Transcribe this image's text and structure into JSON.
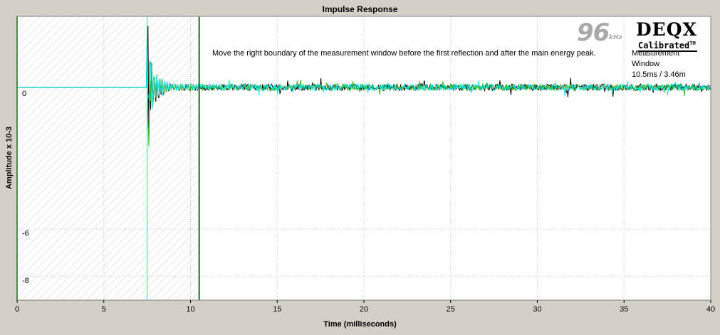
{
  "chart_data": {
    "type": "line",
    "title": "Impulse Response",
    "xlabel": "Time (milliseconds)",
    "ylabel": "Amplitude x 10-3",
    "xlim": [
      0,
      40
    ],
    "ylim": [
      -9,
      3
    ],
    "x_ticks": [
      "0",
      "5",
      "10",
      "15",
      "20",
      "25",
      "30",
      "35",
      "40"
    ],
    "y_ticks": [
      {
        "value": 0,
        "label": "0"
      },
      {
        "value": -6,
        "label": "-6"
      },
      {
        "value": -8,
        "label": "-8"
      }
    ],
    "grid": true,
    "impulse_time_ms": 7.5,
    "window_boundary_ms": 10.5,
    "series": [
      {
        "color": "#000000",
        "peak": {
          "x": 7.55,
          "y": 2.6
        },
        "trough": {
          "x": 7.6,
          "y": -1.9
        }
      },
      {
        "color": "#3cb01c",
        "peak": {
          "x": 7.5,
          "y": 2.4
        },
        "trough": {
          "x": 7.6,
          "y": -2.5
        }
      },
      {
        "color": "#00e5e5",
        "peak": {
          "x": 7.5,
          "y": 2.5
        },
        "trough": {
          "x": 7.65,
          "y": -0.6
        }
      }
    ]
  },
  "annotations": {
    "instruction": "Move the right boundary of the measurement window before the first reflection and after the main energy peak.",
    "window_label_1": "Measurement",
    "window_label_2": "Window",
    "window_value": "10.5ms / 3.46m"
  },
  "branding": {
    "rate": "96",
    "rate_unit": "kHz",
    "name": "DEQX",
    "calibrated": "Calibrated",
    "tm": "TM"
  },
  "colors": {
    "window_line": "#1f6b1f",
    "cursor_line": "#00e5e5",
    "plot_background": "#ffffff",
    "frame": "#d4d0c8"
  }
}
